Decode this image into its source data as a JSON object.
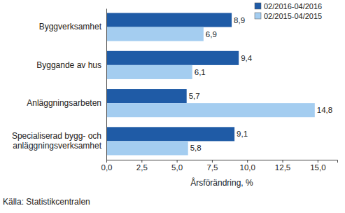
{
  "chart_data": {
    "type": "bar",
    "orientation": "horizontal",
    "categories": [
      "Byggverksamhet",
      "Byggande av hus",
      "Anläggningsarbeten",
      "Specialiserad bygg- och anläggningsverksamhet"
    ],
    "series": [
      {
        "name": "02/2016-04/2016",
        "color": "#1f5ba6",
        "values": [
          8.9,
          9.4,
          5.7,
          9.1
        ],
        "value_labels": [
          "8,9",
          "9,4",
          "5,7",
          "9,1"
        ]
      },
      {
        "name": "02/2015-04/2015",
        "color": "#a4cdf0",
        "values": [
          6.9,
          6.1,
          14.8,
          5.8
        ],
        "value_labels": [
          "6,9",
          "6,1",
          "14,8",
          "5,8"
        ]
      }
    ],
    "xlabel": "Årsförändring, %",
    "xlim": [
      0,
      16.4
    ],
    "xticks": [
      {
        "value": 0,
        "label": "0,0"
      },
      {
        "value": 2.5,
        "label": "2,5"
      },
      {
        "value": 5,
        "label": "5,0"
      },
      {
        "value": 7.5,
        "label": "7,5"
      },
      {
        "value": 10,
        "label": "10,0"
      },
      {
        "value": 12.5,
        "label": "12,5"
      },
      {
        "value": 15,
        "label": "15,0"
      }
    ],
    "grid": false,
    "legend": "upper right",
    "data_labels": true,
    "source": "Källa: Statistikcentralen"
  }
}
